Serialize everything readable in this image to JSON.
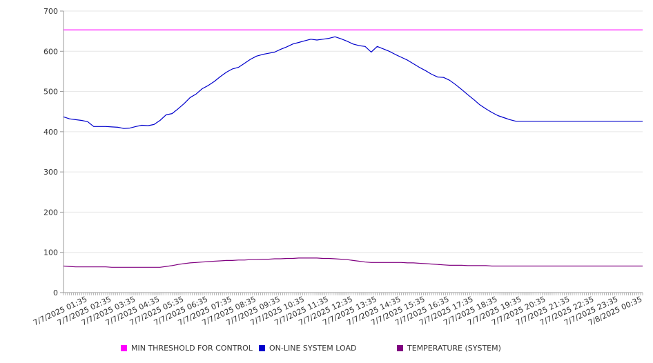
{
  "chart_data": {
    "type": "line",
    "ylim": [
      0,
      700
    ],
    "y_ticks": [
      0,
      100,
      200,
      300,
      400,
      500,
      600,
      700
    ],
    "x_tick_labels": [
      "7/7/2025 01:35",
      "7/7/2025 02:35",
      "7/7/2025 03:35",
      "7/7/2025 04:35",
      "7/7/2025 05:35",
      "7/7/2025 06:35",
      "7/7/2025 07:35",
      "7/7/2025 08:35",
      "7/7/2025 09:35",
      "7/7/2025 10:35",
      "7/7/2025 11:35",
      "7/7/2025 12:35",
      "7/7/2025 13:35",
      "7/7/2025 14:35",
      "7/7/2025 15:35",
      "7/7/2025 16:35",
      "7/7/2025 17:35",
      "7/7/2025 18:35",
      "7/7/2025 19:35",
      "7/7/2025 20:35",
      "7/7/2025 21:35",
      "7/7/2025 22:35",
      "7/7/2025 23:35",
      "7/8/2025 00:35"
    ],
    "x_start": "7/7/2025 00:35",
    "x_step_minutes": 15,
    "grid": "horizontal",
    "legend_position": "bottom",
    "series": [
      {
        "name": "MIN THRESHOLD FOR CONTROL",
        "color": "#ff00ff",
        "values": [
          653,
          653
        ]
      },
      {
        "name": "ON-LINE SYSTEM LOAD",
        "color": "#0000cc",
        "values": [
          437,
          432,
          430,
          428,
          425,
          413,
          413,
          413,
          412,
          411,
          408,
          409,
          413,
          416,
          415,
          418,
          428,
          442,
          445,
          457,
          470,
          485,
          494,
          507,
          515,
          525,
          537,
          548,
          556,
          560,
          570,
          580,
          588,
          592,
          595,
          598,
          605,
          611,
          618,
          622,
          626,
          630,
          628,
          630,
          632,
          636,
          631,
          625,
          618,
          614,
          612,
          598,
          612,
          606,
          600,
          592,
          585,
          578,
          569,
          560,
          552,
          543,
          536,
          535,
          528,
          517,
          505,
          492,
          480,
          467,
          457,
          448,
          440,
          435,
          430,
          426
        ]
      },
      {
        "name": "TEMPERATURE (SYSTEM)",
        "color": "#800080",
        "values": [
          66,
          65,
          64,
          64,
          64,
          64,
          64,
          64,
          63,
          63,
          63,
          63,
          63,
          63,
          63,
          63,
          63,
          65,
          67,
          70,
          72,
          74,
          75,
          76,
          77,
          78,
          79,
          80,
          80,
          81,
          81,
          82,
          82,
          83,
          83,
          84,
          84,
          85,
          85,
          86,
          86,
          86,
          86,
          85,
          85,
          84,
          83,
          82,
          80,
          78,
          76,
          75,
          75,
          75,
          75,
          75,
          75,
          74,
          74,
          73,
          72,
          71,
          70,
          69,
          68,
          68,
          68,
          67,
          67,
          67,
          67,
          66,
          66,
          66,
          66,
          66
        ]
      }
    ]
  }
}
